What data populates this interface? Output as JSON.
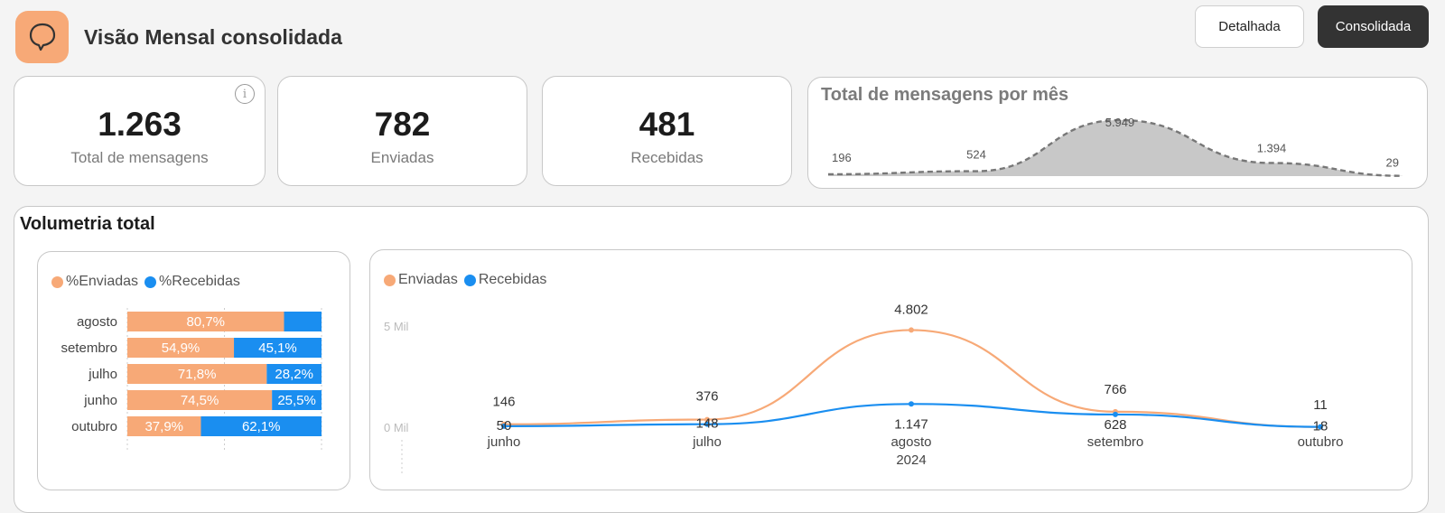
{
  "header": {
    "title": "Visão Mensal consolidada",
    "icon": "chat-bubble-icon",
    "buttons": {
      "detailed": "Detalhada",
      "consolidated": "Consolidada"
    },
    "active_button": "consolidated"
  },
  "kpis": {
    "total": {
      "value": "1.263",
      "label": "Total de mensagens",
      "info_icon": "i"
    },
    "sent": {
      "value": "782",
      "label": "Enviadas"
    },
    "received": {
      "value": "481",
      "label": "Recebidas"
    }
  },
  "colors": {
    "enviadas": "#f7a977",
    "recebidas": "#1a8ef0",
    "area": "#c8c8c8"
  },
  "section": {
    "title": "Volumetria total"
  },
  "chart_data": [
    {
      "type": "area",
      "title": "Total de mensagens por mês",
      "values": [
        196,
        524,
        5949,
        1394,
        29
      ],
      "labels": [
        "196",
        "524",
        "5.949",
        "1.394",
        "29"
      ]
    },
    {
      "type": "bar",
      "stacked": "100%",
      "orientation": "horizontal",
      "legend": [
        "%Enviadas",
        "%Recebidas"
      ],
      "categories": [
        "agosto",
        "setembro",
        "julho",
        "junho",
        "outubro"
      ],
      "series": [
        {
          "name": "%Enviadas",
          "values": [
            80.7,
            54.9,
            71.8,
            74.5,
            37.9
          ],
          "labels": [
            "80,7%",
            "54,9%",
            "71,8%",
            "74,5%",
            "37,9%"
          ]
        },
        {
          "name": "%Recebidas",
          "values": [
            19.3,
            45.1,
            28.2,
            25.5,
            62.1
          ],
          "labels": [
            "",
            "45,1%",
            "28,2%",
            "25,5%",
            "62,1%"
          ]
        }
      ]
    },
    {
      "type": "line",
      "legend": [
        "Enviadas",
        "Recebidas"
      ],
      "categories": [
        "junho",
        "julho",
        "agosto",
        "setembro",
        "outubro"
      ],
      "x_group_label": "2024",
      "y_ticks": [
        "0 Mil",
        "5 Mil"
      ],
      "ylim": [
        0,
        5000
      ],
      "series": [
        {
          "name": "Enviadas",
          "values": [
            146,
            376,
            4802,
            766,
            11
          ],
          "labels": [
            "146",
            "376",
            "4.802",
            "766",
            "11"
          ]
        },
        {
          "name": "Recebidas",
          "values": [
            50,
            148,
            1147,
            628,
            18
          ],
          "labels": [
            "50",
            "148",
            "1.147",
            "628",
            "18"
          ]
        }
      ]
    }
  ]
}
